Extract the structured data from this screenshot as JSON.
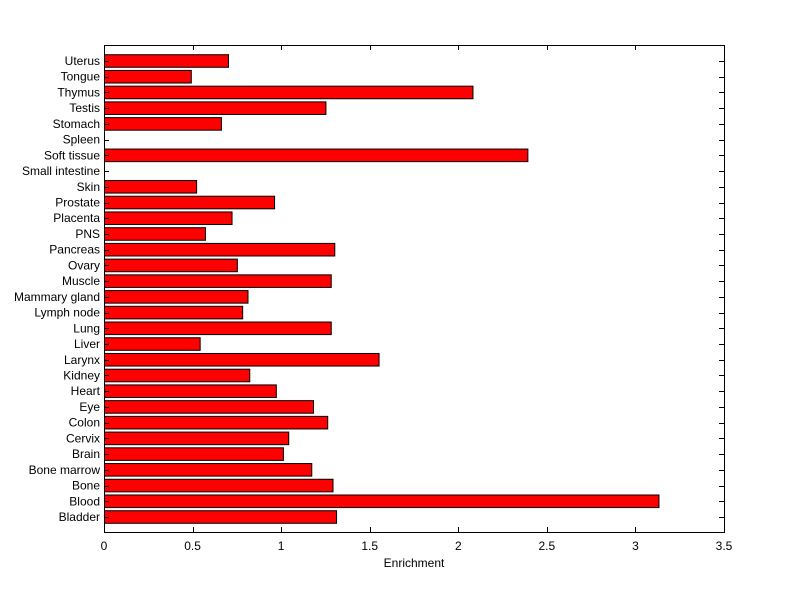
{
  "chart_data": {
    "type": "bar",
    "orientation": "horizontal",
    "xlabel": "Enrichment",
    "ylabel": "",
    "title": "",
    "xlim": [
      0,
      3.5
    ],
    "xticks": [
      0,
      0.5,
      1,
      1.5,
      2,
      2.5,
      3,
      3.5
    ],
    "xtick_labels": [
      "0",
      "0.5",
      "1",
      "1.5",
      "2",
      "2.5",
      "3",
      "3.5"
    ],
    "bar_color": "#ff0000",
    "edge_color": "#000000",
    "grid": false,
    "categories": [
      "Bladder",
      "Blood",
      "Bone",
      "Bone marrow",
      "Brain",
      "Cervix",
      "Colon",
      "Eye",
      "Heart",
      "Kidney",
      "Larynx",
      "Liver",
      "Lung",
      "Lymph node",
      "Mammary gland",
      "Muscle",
      "Ovary",
      "Pancreas",
      "PNS",
      "Placenta",
      "Prostate",
      "Skin",
      "Small intestine",
      "Soft tissue",
      "Spleen",
      "Stomach",
      "Testis",
      "Thymus",
      "Tongue",
      "Uterus"
    ],
    "values": [
      1.31,
      3.13,
      1.29,
      1.17,
      1.01,
      1.04,
      1.26,
      1.18,
      0.97,
      0.82,
      1.55,
      0.54,
      1.28,
      0.78,
      0.81,
      1.28,
      0.75,
      1.3,
      0.57,
      0.72,
      0.96,
      0.52,
      0.0,
      2.39,
      0.0,
      0.66,
      1.25,
      2.08,
      0.49,
      0.7
    ]
  }
}
